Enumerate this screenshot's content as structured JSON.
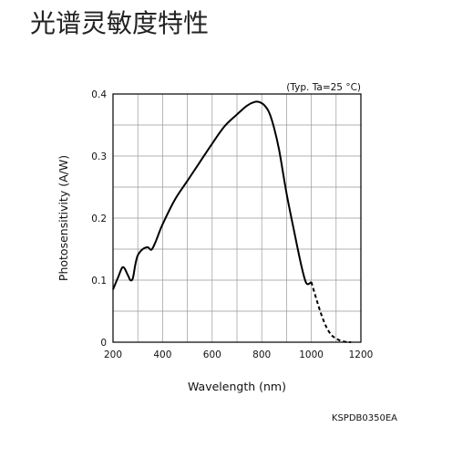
{
  "page": {
    "title": "光谱灵敏度特性"
  },
  "chart_data": {
    "type": "line",
    "title": "",
    "annotation": "(Typ. Ta=25 °C)",
    "xlabel": "Wavelength (nm)",
    "ylabel": "Photosensitivity (A/W)",
    "xlim": [
      200,
      1200
    ],
    "ylim": [
      0,
      0.4
    ],
    "x_ticks": [
      "200",
      "400",
      "600",
      "800",
      "1000",
      "1200"
    ],
    "y_ticks": [
      "0",
      "0.1",
      "0.2",
      "0.3",
      "0.4"
    ],
    "grid": true,
    "legend": "none",
    "footnote": "KSPDB0350EA",
    "series": [
      {
        "style": "solid",
        "x": [
          200,
          220,
          240,
          260,
          270,
          280,
          290,
          300,
          320,
          340,
          355,
          370,
          380,
          400,
          450,
          500,
          550,
          600,
          650,
          700,
          740,
          770,
          790,
          810,
          830,
          850,
          870,
          900,
          930,
          960,
          980,
          1000
        ],
        "y": [
          0.085,
          0.104,
          0.121,
          0.108,
          0.1,
          0.103,
          0.125,
          0.14,
          0.15,
          0.153,
          0.149,
          0.16,
          0.17,
          0.19,
          0.23,
          0.26,
          0.29,
          0.32,
          0.348,
          0.367,
          0.381,
          0.387,
          0.387,
          0.382,
          0.37,
          0.345,
          0.31,
          0.24,
          0.18,
          0.123,
          0.095,
          0.097
        ]
      },
      {
        "style": "dashed",
        "x": [
          1000,
          1020,
          1040,
          1060,
          1080,
          1100,
          1120,
          1140,
          1160
        ],
        "y": [
          0.097,
          0.07,
          0.045,
          0.025,
          0.012,
          0.006,
          0.002,
          0.0005,
          0.0
        ]
      }
    ]
  }
}
